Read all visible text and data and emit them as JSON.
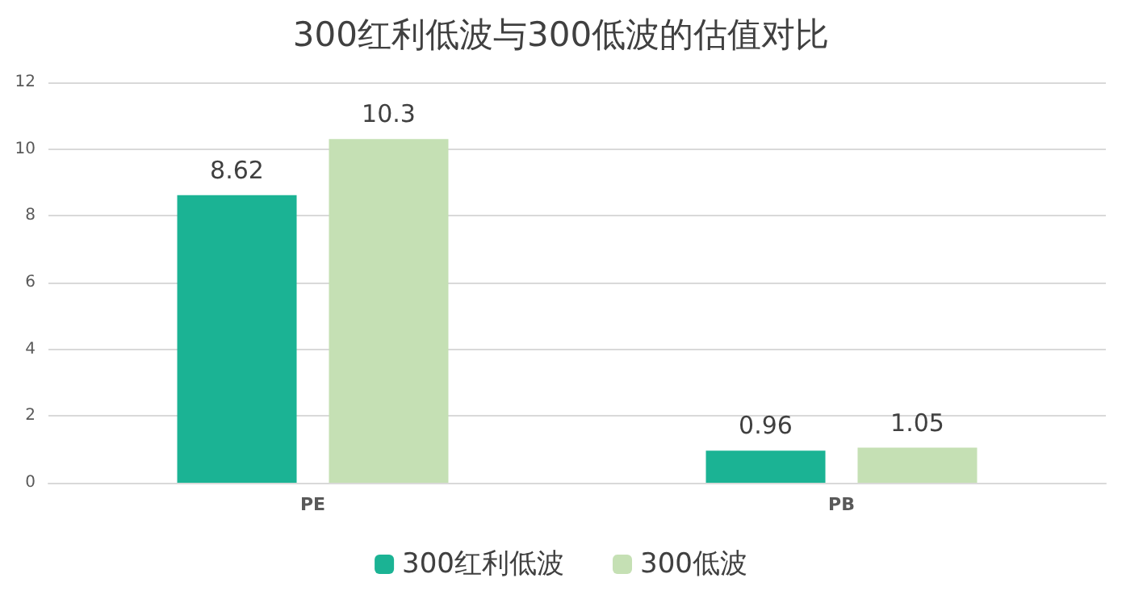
{
  "chart_data": {
    "type": "bar",
    "title": "300红利低波与300低波的估值对比",
    "categories": [
      "PE",
      "PB"
    ],
    "series": [
      {
        "name": "300红利低波",
        "color": "#1bb394",
        "values": [
          8.62,
          0.96
        ]
      },
      {
        "name": "300低波",
        "color": "#c5e0b4",
        "values": [
          10.3,
          1.05
        ]
      }
    ],
    "ylim": [
      0,
      12
    ],
    "yticks": [
      0,
      2,
      4,
      6,
      8,
      10,
      12
    ],
    "grid": "y",
    "legend": "bottom",
    "data_labels": true
  }
}
